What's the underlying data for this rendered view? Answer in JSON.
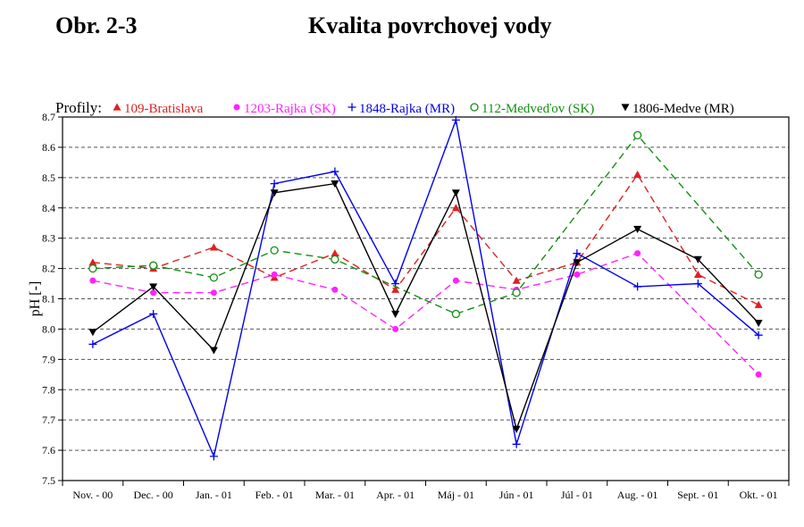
{
  "header": {
    "figure_number": "Obr. 2-3",
    "title": "Kvalita povrchovej vody"
  },
  "chart_data": {
    "type": "line",
    "title": "Kvalita povrchovej vody",
    "xlabel": "",
    "ylabel": "pH [-]",
    "ylim": [
      7.5,
      8.7
    ],
    "yticks": [
      7.5,
      7.6,
      7.7,
      7.8,
      7.9,
      8.0,
      8.1,
      8.2,
      8.3,
      8.4,
      8.5,
      8.6,
      8.7
    ],
    "grid": "horizontal dashed",
    "legend_title": "Profily:",
    "legend_position": "top",
    "categories": [
      "Nov. - 00",
      "Dec. - 00",
      "Jan. - 01",
      "Feb. - 01",
      "Mar. - 01",
      "Apr. - 01",
      "Máj - 01",
      "Jún - 01",
      "Júl - 01",
      "Aug. - 01",
      "Sept. - 01",
      "Okt. - 01"
    ],
    "series": [
      {
        "name": "109-Bratislava",
        "color": "#e02020",
        "marker": "triangle-up",
        "dash": "dashed",
        "values": [
          8.22,
          8.2,
          8.27,
          8.17,
          8.25,
          8.13,
          8.4,
          8.16,
          8.22,
          8.51,
          8.18,
          8.08
        ]
      },
      {
        "name": "1203-Rajka (SK)",
        "color": "#ff22ff",
        "marker": "circle-filled",
        "dash": "dashed",
        "values": [
          8.16,
          8.12,
          8.12,
          8.18,
          8.13,
          8.0,
          8.16,
          8.13,
          8.18,
          8.25,
          null,
          7.85
        ]
      },
      {
        "name": "1848-Rajka (MR)",
        "color": "#0000ee",
        "marker": "plus",
        "dash": "solid",
        "values": [
          7.95,
          8.05,
          7.58,
          8.48,
          8.52,
          8.15,
          8.69,
          7.62,
          8.25,
          8.14,
          8.15,
          7.98
        ]
      },
      {
        "name": "112-Medveďov (SK)",
        "color": "#109010",
        "marker": "circle-open",
        "dash": "dashed",
        "values": [
          8.2,
          8.21,
          8.17,
          8.26,
          8.23,
          null,
          8.05,
          8.12,
          null,
          8.64,
          null,
          8.18
        ]
      },
      {
        "name": "1806-Medve (MR)",
        "color": "#000000",
        "marker": "triangle-down",
        "dash": "solid",
        "values": [
          7.99,
          8.14,
          7.93,
          8.45,
          8.48,
          8.05,
          8.45,
          7.67,
          8.22,
          8.33,
          8.23,
          8.02
        ]
      }
    ]
  }
}
